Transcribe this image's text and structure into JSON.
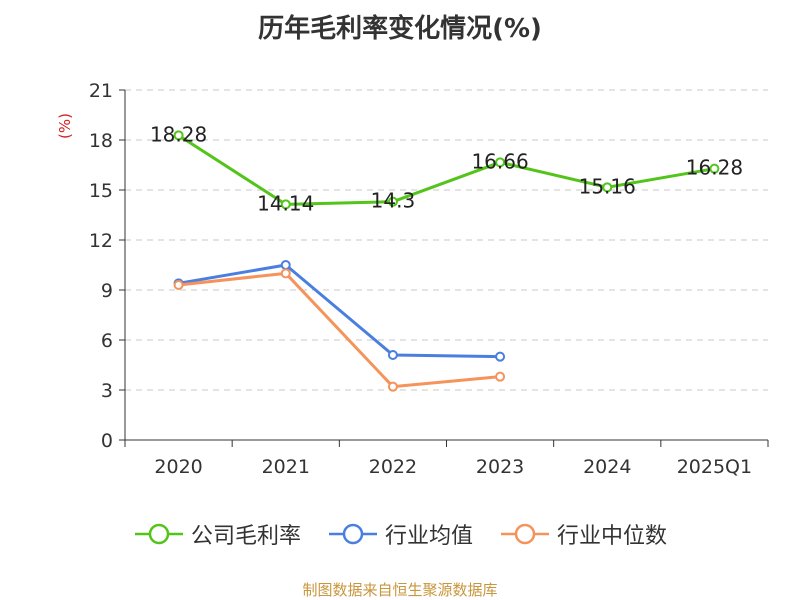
{
  "chart_data": {
    "type": "line",
    "title": "历年毛利率变化情况(%)",
    "ylabel": "(%)",
    "categories": [
      "2020",
      "2021",
      "2022",
      "2023",
      "2024",
      "2025Q1"
    ],
    "ylim": [
      0,
      21
    ],
    "yticks": [
      0,
      3,
      6,
      9,
      12,
      15,
      18,
      21
    ],
    "grid": true,
    "legend_position": "bottom",
    "series": [
      {
        "name": "公司毛利率",
        "values": [
          18.28,
          14.14,
          14.3,
          16.66,
          15.16,
          16.28
        ],
        "color": "#52c41a",
        "show_labels": true
      },
      {
        "name": "行业均值",
        "values": [
          9.4,
          10.5,
          5.1,
          5.0,
          null,
          null
        ],
        "color": "#4a7fe0",
        "show_labels": false
      },
      {
        "name": "行业中位数",
        "values": [
          9.3,
          10.0,
          3.2,
          3.8,
          null,
          null
        ],
        "color": "#f5935a",
        "show_labels": false
      }
    ]
  },
  "source": "制图数据来自恒生聚源数据库"
}
